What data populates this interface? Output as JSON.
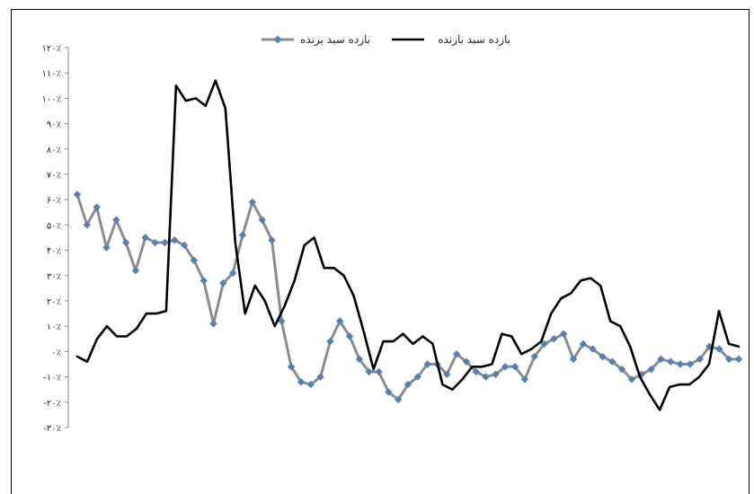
{
  "chart_data": {
    "type": "line",
    "title": "",
    "xlabel": "",
    "ylabel": "",
    "ylim": [
      -30,
      120
    ],
    "ytick_labels": [
      "۱۲۰٪",
      "۱۱۰٪",
      "۱۰۰٪",
      "۹۰٪",
      "۸۰٪",
      "۷۰٪",
      "۶۰٪",
      "۵۰٪",
      "۴۰٪",
      "۳۰٪",
      "۲۰٪",
      "۱۰٪",
      "۰٪",
      "-۱۰٪",
      "-۲۰٪",
      "-۳۰٪"
    ],
    "ytick_values": [
      120,
      110,
      100,
      90,
      80,
      70,
      60,
      50,
      40,
      30,
      20,
      10,
      0,
      -10,
      -20,
      -30
    ],
    "legend_position": "top",
    "series": [
      {
        "name": "بازده سبد برنده",
        "color": "#8c8c8c",
        "marker_color": "#4f81bd",
        "marker": "diamond",
        "values": [
          62,
          50,
          57,
          41,
          52,
          43,
          32,
          45,
          43,
          43,
          44,
          42,
          36,
          28,
          11,
          27,
          31,
          46,
          59,
          52,
          44,
          12,
          -6,
          -12,
          -13,
          -10,
          4,
          12,
          6,
          -3,
          -8,
          -8,
          -16,
          -19,
          -13,
          -10,
          -5,
          -5,
          -9,
          -1,
          -4,
          -8,
          -10,
          -9,
          -6,
          -6,
          -11,
          -2,
          3,
          5,
          7,
          -3,
          3,
          1,
          -2,
          -4,
          -7,
          -11,
          -9,
          -7,
          -3,
          -4,
          -5,
          -5,
          -3,
          2,
          1,
          -3,
          -3
        ]
      },
      {
        "name": "بازده سبد بازنده",
        "color": "#000000",
        "marker": "none",
        "values": [
          -2,
          -4,
          5,
          10,
          6,
          6,
          9,
          15,
          15,
          16,
          105,
          99,
          100,
          97,
          107,
          96,
          43,
          15,
          26,
          20,
          10,
          18,
          28,
          42,
          45,
          33,
          33,
          30,
          22,
          8,
          -7,
          4,
          4,
          7,
          3,
          6,
          3,
          -13,
          -15,
          -11,
          -6,
          -6,
          -5,
          7,
          6,
          -1,
          1,
          4,
          15,
          21,
          23,
          28,
          29,
          26,
          12,
          10,
          2,
          -10,
          -17,
          -23,
          -14,
          -13,
          -13,
          -10,
          -5,
          16,
          3,
          2
        ]
      }
    ]
  }
}
